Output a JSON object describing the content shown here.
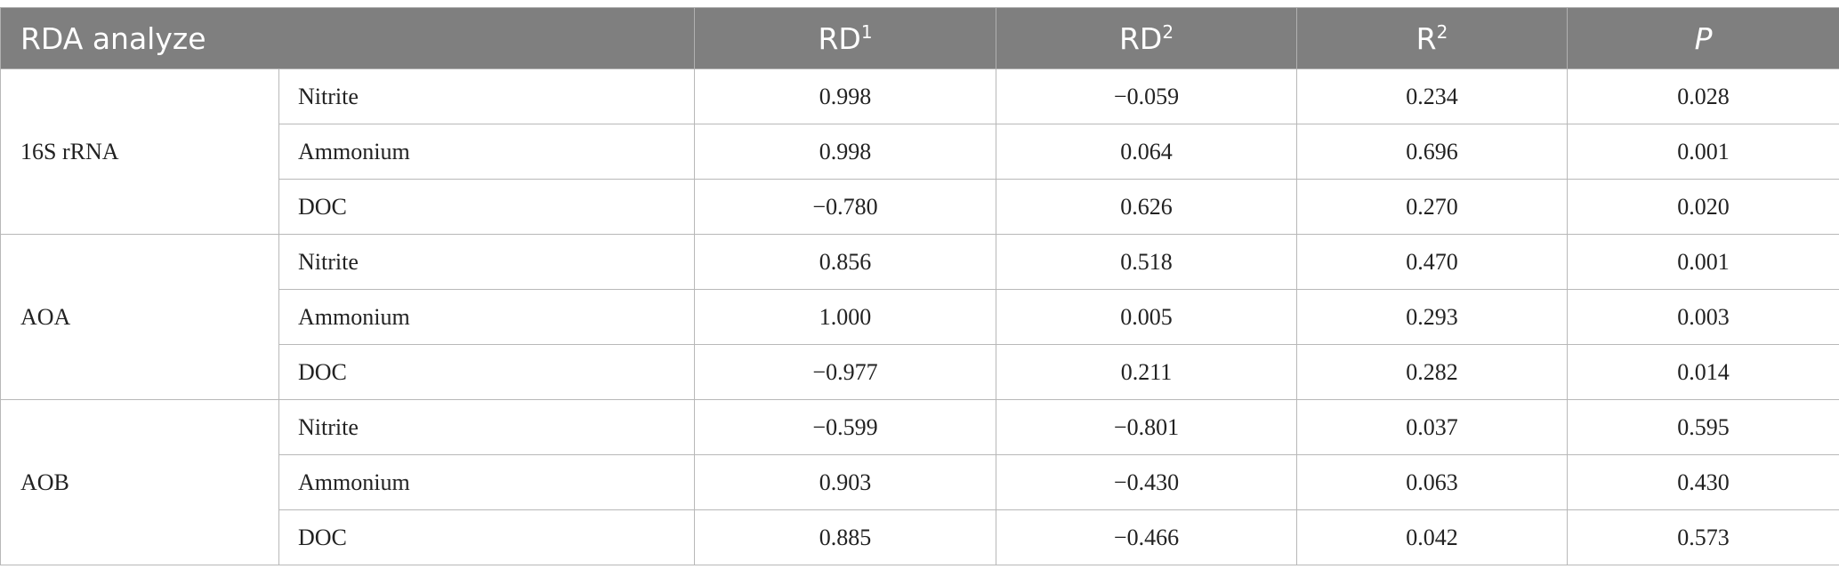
{
  "table": {
    "header": {
      "analyze": "RDA analyze",
      "rd1_base": "RD",
      "rd1_sup": "1",
      "rd2_base": "RD",
      "rd2_sup": "2",
      "r2_base": "R",
      "r2_sup": "2",
      "p": "P"
    },
    "groups": [
      {
        "name": "16S rRNA",
        "rows": [
          {
            "var": "Nitrite",
            "rd1": "0.998",
            "rd2": "−0.059",
            "r2": "0.234",
            "p": "0.028"
          },
          {
            "var": "Ammonium",
            "rd1": "0.998",
            "rd2": "0.064",
            "r2": "0.696",
            "p": "0.001"
          },
          {
            "var": "DOC",
            "rd1": "−0.780",
            "rd2": "0.626",
            "r2": "0.270",
            "p": "0.020"
          }
        ]
      },
      {
        "name": "AOA",
        "rows": [
          {
            "var": "Nitrite",
            "rd1": "0.856",
            "rd2": "0.518",
            "r2": "0.470",
            "p": "0.001"
          },
          {
            "var": "Ammonium",
            "rd1": "1.000",
            "rd2": "0.005",
            "r2": "0.293",
            "p": "0.003"
          },
          {
            "var": "DOC",
            "rd1": "−0.977",
            "rd2": "0.211",
            "r2": "0.282",
            "p": "0.014"
          }
        ]
      },
      {
        "name": "AOB",
        "rows": [
          {
            "var": "Nitrite",
            "rd1": "−0.599",
            "rd2": "−0.801",
            "r2": "0.037",
            "p": "0.595"
          },
          {
            "var": "Ammonium",
            "rd1": "0.903",
            "rd2": "−0.430",
            "r2": "0.063",
            "p": "0.430"
          },
          {
            "var": "DOC",
            "rd1": "0.885",
            "rd2": "−0.466",
            "r2": "0.042",
            "p": "0.573"
          }
        ]
      }
    ]
  }
}
